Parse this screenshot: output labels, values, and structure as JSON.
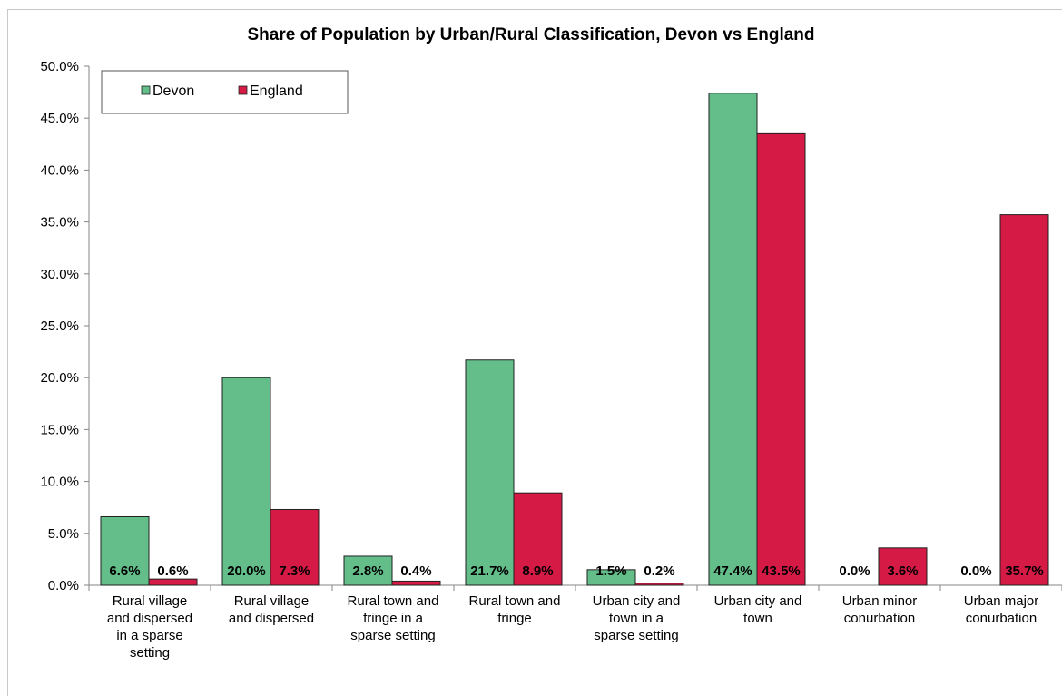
{
  "chart_data": {
    "type": "bar",
    "title": "Share of Population by Urban/Rural Classification, Devon vs England",
    "xlabel": "",
    "ylabel": "",
    "ylim": [
      0,
      50
    ],
    "y_ticks": [
      "0.0%",
      "5.0%",
      "10.0%",
      "15.0%",
      "20.0%",
      "25.0%",
      "30.0%",
      "35.0%",
      "40.0%",
      "45.0%",
      "50.0%"
    ],
    "grid": false,
    "legend_position": "top-left",
    "categories": [
      [
        "Rural village",
        "and dispersed",
        "in a sparse",
        "setting"
      ],
      [
        "Rural village",
        "and dispersed"
      ],
      [
        "Rural town and",
        "fringe in a",
        "sparse setting"
      ],
      [
        "Rural town and",
        "fringe"
      ],
      [
        "Urban city and",
        "town in a",
        "sparse setting"
      ],
      [
        "Urban city and",
        "town"
      ],
      [
        "Urban minor",
        "conurbation"
      ],
      [
        "Urban major",
        "conurbation"
      ]
    ],
    "series": [
      {
        "name": "Devon",
        "color": "#63be8a",
        "values": [
          6.6,
          20.0,
          2.8,
          21.7,
          1.5,
          47.4,
          0.0,
          0.0
        ],
        "labels": [
          "6.6%",
          "20.0%",
          "2.8%",
          "21.7%",
          "1.5%",
          "47.4%",
          "0.0%",
          "0.0%"
        ]
      },
      {
        "name": "England",
        "color": "#d41a45",
        "values": [
          0.6,
          7.3,
          0.4,
          8.9,
          0.2,
          43.5,
          3.6,
          35.7
        ],
        "labels": [
          "0.6%",
          "7.3%",
          "0.4%",
          "8.9%",
          "0.2%",
          "43.5%",
          "3.6%",
          "35.7%"
        ]
      }
    ]
  }
}
